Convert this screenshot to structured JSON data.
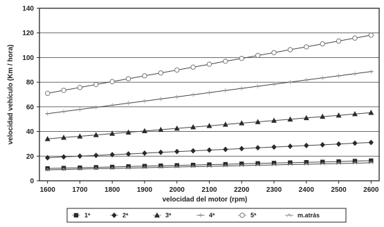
{
  "chart_data": {
    "type": "line",
    "title": "",
    "xlabel": "velocidad del motor (rpm)",
    "ylabel": "velocidad vehículo (Km / hora)",
    "x": [
      1600,
      1650,
      1700,
      1750,
      1800,
      1850,
      1900,
      1950,
      2000,
      2050,
      2100,
      2150,
      2200,
      2250,
      2300,
      2350,
      2400,
      2450,
      2500,
      2550,
      2600
    ],
    "xticks": [
      1600,
      1700,
      1800,
      1900,
      2000,
      2100,
      2200,
      2300,
      2400,
      2500,
      2600
    ],
    "xlim": [
      1575,
      2625
    ],
    "yticks": [
      0,
      20,
      40,
      60,
      80,
      100,
      120,
      140
    ],
    "ylim": [
      0,
      140
    ],
    "grid": true,
    "legend_position": "bottom",
    "series": [
      {
        "name": "1ª",
        "marker": "square",
        "values": [
          10.0,
          10.3,
          10.6,
          10.9,
          11.2,
          11.6,
          11.9,
          12.2,
          12.5,
          12.8,
          13.1,
          13.4,
          13.8,
          14.1,
          14.4,
          14.7,
          15.0,
          15.3,
          15.6,
          16.0,
          16.3
        ]
      },
      {
        "name": "2ª",
        "marker": "diamond",
        "values": [
          18.7,
          19.4,
          20.0,
          20.6,
          21.2,
          21.8,
          22.4,
          23.1,
          23.7,
          24.3,
          24.9,
          25.5,
          26.1,
          26.8,
          27.4,
          28.0,
          28.6,
          29.2,
          29.8,
          30.5,
          31.1
        ]
      },
      {
        "name": "3ª",
        "marker": "triangle",
        "values": [
          34.0,
          35.1,
          36.1,
          37.2,
          38.3,
          39.3,
          40.4,
          41.5,
          42.5,
          43.6,
          44.6,
          45.7,
          46.8,
          47.8,
          48.9,
          49.9,
          51.0,
          52.1,
          53.1,
          54.2,
          55.3
        ]
      },
      {
        "name": "4ª",
        "marker": "minus",
        "values": [
          54.5,
          56.2,
          57.9,
          59.6,
          61.3,
          63.0,
          64.7,
          66.4,
          68.1,
          69.8,
          71.5,
          73.3,
          75.0,
          76.7,
          78.4,
          80.1,
          81.8,
          83.5,
          85.2,
          86.9,
          88.6
        ]
      },
      {
        "name": "5ª",
        "marker": "circle",
        "values": [
          71.0,
          73.4,
          75.7,
          78.1,
          80.5,
          82.8,
          85.2,
          87.5,
          89.9,
          92.2,
          94.6,
          97.0,
          99.3,
          101.7,
          104.0,
          106.4,
          108.7,
          111.1,
          113.4,
          115.8,
          118.2
        ]
      },
      {
        "name": "m.atrás",
        "marker": "caret",
        "values": [
          8.9,
          9.2,
          9.5,
          9.8,
          10.0,
          10.3,
          10.6,
          10.9,
          11.2,
          11.5,
          11.7,
          12.0,
          12.3,
          12.6,
          12.9,
          13.2,
          13.4,
          13.7,
          14.0,
          14.3,
          14.6
        ]
      }
    ]
  }
}
